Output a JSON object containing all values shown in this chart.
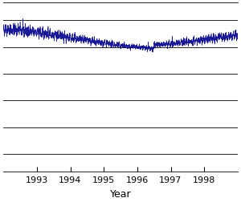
{
  "title": "",
  "xlabel": "Year",
  "ylabel": "",
  "xlim": [
    1992.0,
    1999.0
  ],
  "line_color": "#00008B",
  "background_color": "#ffffff",
  "grid_color": "#000000",
  "tick_years": [
    1993,
    1994,
    1995,
    1996,
    1997,
    1998
  ],
  "figsize": [
    3.0,
    2.53
  ],
  "dpi": 100,
  "seed": 42,
  "solar_cycle_min_year": 1996.5,
  "solar_cycle_peak_year": 1991.8,
  "x_start": 1992.0,
  "x_end": 1999.0,
  "n_points": 2500,
  "ylim": [
    -600,
    350
  ],
  "y_gridlines": [
    -500,
    -350,
    -200,
    -50,
    100,
    250
  ],
  "baseline": 80.0,
  "amplitude": 120.0
}
